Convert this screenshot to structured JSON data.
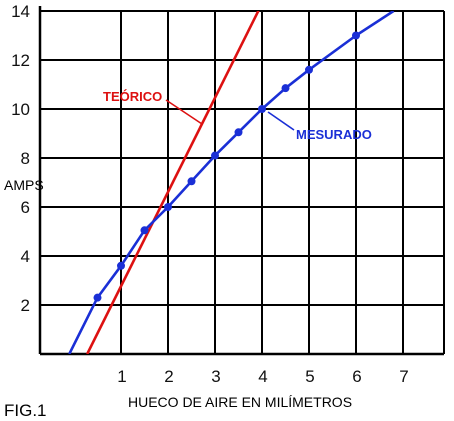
{
  "figure_label": "FIG.1",
  "chart_data": {
    "type": "line",
    "xlabel": "HUECO DE AIRE EN MILÍMETROS",
    "ylabel": "AMPS",
    "xlim": [
      0,
      8
    ],
    "ylim": [
      0,
      14
    ],
    "x_ticks": [
      "1",
      "2",
      "3",
      "4",
      "5",
      "6",
      "7"
    ],
    "y_ticks": [
      "2",
      "4",
      "6",
      "8",
      "10",
      "12",
      "14"
    ],
    "grid": true,
    "series": [
      {
        "name": "TEÓRICO",
        "color": "#dd1111",
        "markers": false,
        "points": [
          [
            0.28,
            0
          ],
          [
            4.0,
            14.3
          ]
        ]
      },
      {
        "name": "MESURADO",
        "color": "#1a2fd6",
        "markers": true,
        "points": [
          [
            -0.1,
            0
          ],
          [
            0.5,
            2.3
          ],
          [
            1.0,
            3.6
          ],
          [
            1.5,
            5.05
          ],
          [
            2.0,
            6.0
          ],
          [
            2.5,
            7.05
          ],
          [
            3.0,
            8.1
          ],
          [
            3.5,
            9.05
          ],
          [
            4.0,
            10.0
          ],
          [
            4.5,
            10.85
          ],
          [
            5.0,
            11.6
          ],
          [
            6.0,
            13.0
          ],
          [
            6.8,
            14.0
          ]
        ]
      }
    ],
    "annotations": [
      {
        "text": "TEÓRICO",
        "series": "TEÓRICO"
      },
      {
        "text": "MESURADO",
        "series": "MESURADO"
      }
    ]
  }
}
